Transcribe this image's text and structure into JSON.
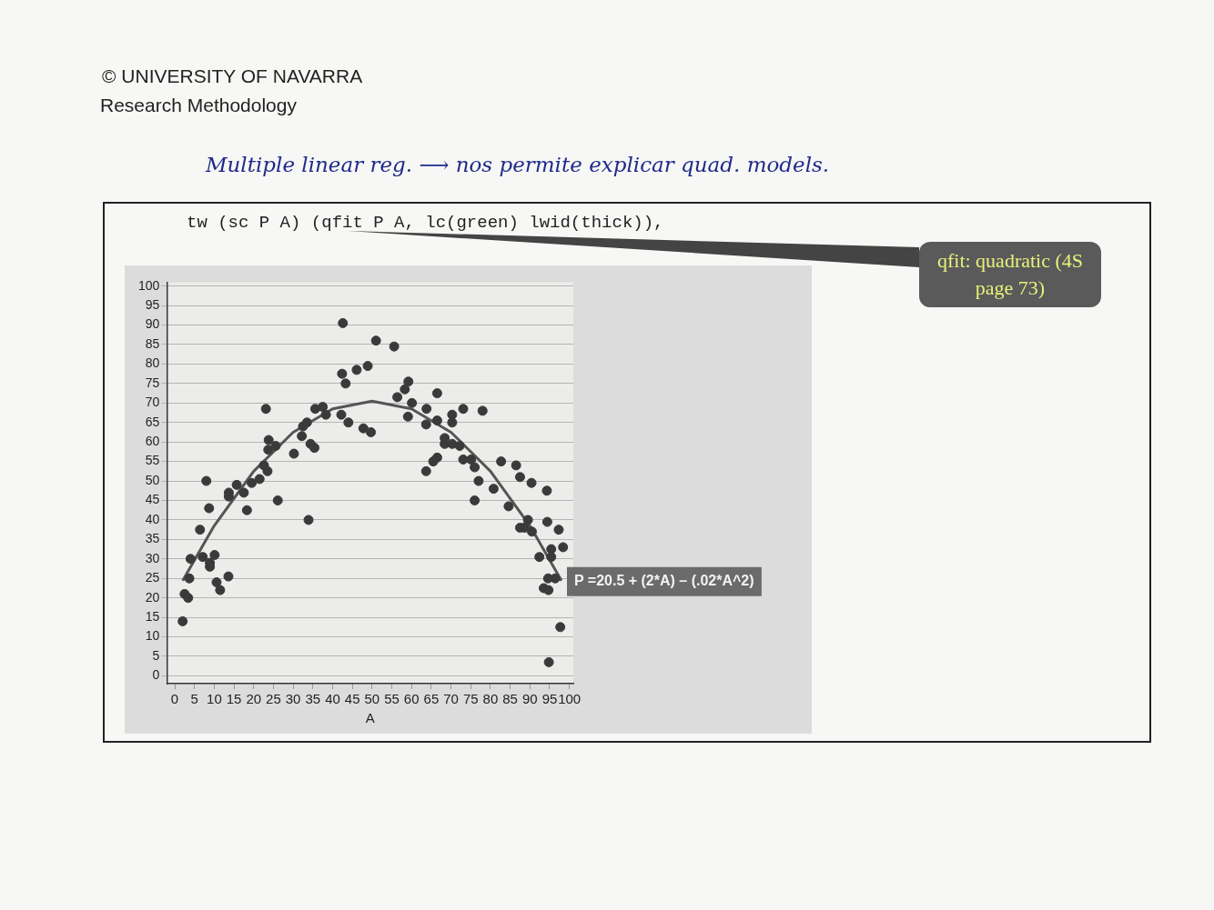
{
  "chart_data": {
    "type": "scatter",
    "xlabel": "A",
    "annotations": [
      "© UNIVERSITY OF NAVARRA",
      "Research Methodology",
      "Multiple linear reg. ⟶ nos permite explicar quad. models.",
      "tw (sc P A) (qfit P A, lc(green) lwid(thick)),",
      "qfit: quadratic (4S page 73)",
      {
        "text": "P =20.5 + (2*A) – (.02*A^2)",
        "x": 98,
        "y": 24.4
      }
    ],
    "series": [
      {
        "color": "#3a3a3a",
        "marker": "circle",
        "x": [
          2,
          2.5,
          3.4,
          3.7,
          4,
          6.4,
          7.1,
          8,
          8.7,
          8.9,
          8.9,
          10.1,
          10.6,
          11.5,
          13.6,
          13.7,
          13.7,
          15.7,
          17.5,
          18.3,
          19.5,
          21.5,
          22.6,
          23.1,
          23.5,
          23.7,
          23.8,
          25.6,
          26.1,
          30.2,
          32.2,
          32.5,
          33.5,
          33.9,
          34.4,
          35.4,
          35.6,
          37.5,
          38.3,
          42.2,
          42.4,
          42.6,
          43.3,
          44,
          46.1,
          47.8,
          48.9,
          49.7,
          51,
          55.6,
          56.4,
          58.3,
          59.2,
          59.1,
          60.1,
          63.7,
          63.8,
          63.7,
          65.5,
          66.5,
          66.5,
          66.5,
          68.4,
          68.4,
          70.3,
          70.3,
          70.3,
          72.2,
          73.1,
          73.1,
          75.1,
          76,
          77,
          76,
          78,
          80.8,
          82.7,
          84.6,
          86.5,
          87.5,
          87.5,
          88.6,
          89.5,
          90.5,
          90.4,
          92.4,
          93.5,
          94.3,
          94.4,
          94.6,
          94.7,
          95.4,
          95.4,
          94.8,
          96.4,
          97.3,
          97.7,
          98.4
        ],
        "values": [
          14,
          21,
          20,
          25,
          30,
          37.5,
          30.5,
          50,
          43,
          29,
          28,
          31,
          24,
          22,
          25.5,
          47,
          46,
          49,
          47,
          42.5,
          49.5,
          50.5,
          54,
          68.5,
          52.5,
          58,
          60.5,
          59,
          45,
          57,
          61.5,
          64,
          65,
          40,
          59.5,
          58.5,
          68.5,
          69,
          67,
          67,
          77.5,
          90.5,
          75,
          65,
          78.5,
          63.5,
          79.5,
          62.5,
          86,
          84.5,
          71.5,
          73.5,
          75.5,
          66.5,
          70,
          52.5,
          68.5,
          64.5,
          55,
          56,
          72.5,
          65.5,
          61,
          59.5,
          67,
          65,
          59.5,
          59,
          68.5,
          55.5,
          55.5,
          53.5,
          50,
          45,
          68,
          48,
          55,
          43.5,
          54,
          51,
          38,
          38,
          40,
          37,
          49.5,
          30.5,
          22.5,
          47.5,
          39.5,
          25,
          22,
          32.5,
          30.5,
          3.5,
          25,
          37.5,
          12.5,
          33
        ]
      },
      {
        "type": "line",
        "color": "#555555",
        "marker": "none",
        "x": [
          2,
          10,
          20,
          30,
          40,
          50,
          60,
          70,
          80,
          90,
          98
        ],
        "values": [
          24.4,
          38.5,
          52.5,
          62.5,
          68.5,
          70.5,
          68.5,
          62.5,
          52.5,
          38.5,
          24.4
        ]
      }
    ],
    "grid": "y",
    "xlim": [
      -2,
      101
    ],
    "ylim": [
      -2,
      101
    ],
    "xticks": [
      0,
      5,
      10,
      15,
      20,
      25,
      30,
      35,
      40,
      45,
      50,
      55,
      60,
      65,
      70,
      75,
      80,
      85,
      90,
      95,
      100
    ],
    "yticks": [
      0,
      5,
      10,
      15,
      20,
      25,
      30,
      35,
      40,
      45,
      50,
      55,
      60,
      65,
      70,
      75,
      80,
      85,
      90,
      95,
      100
    ]
  }
}
